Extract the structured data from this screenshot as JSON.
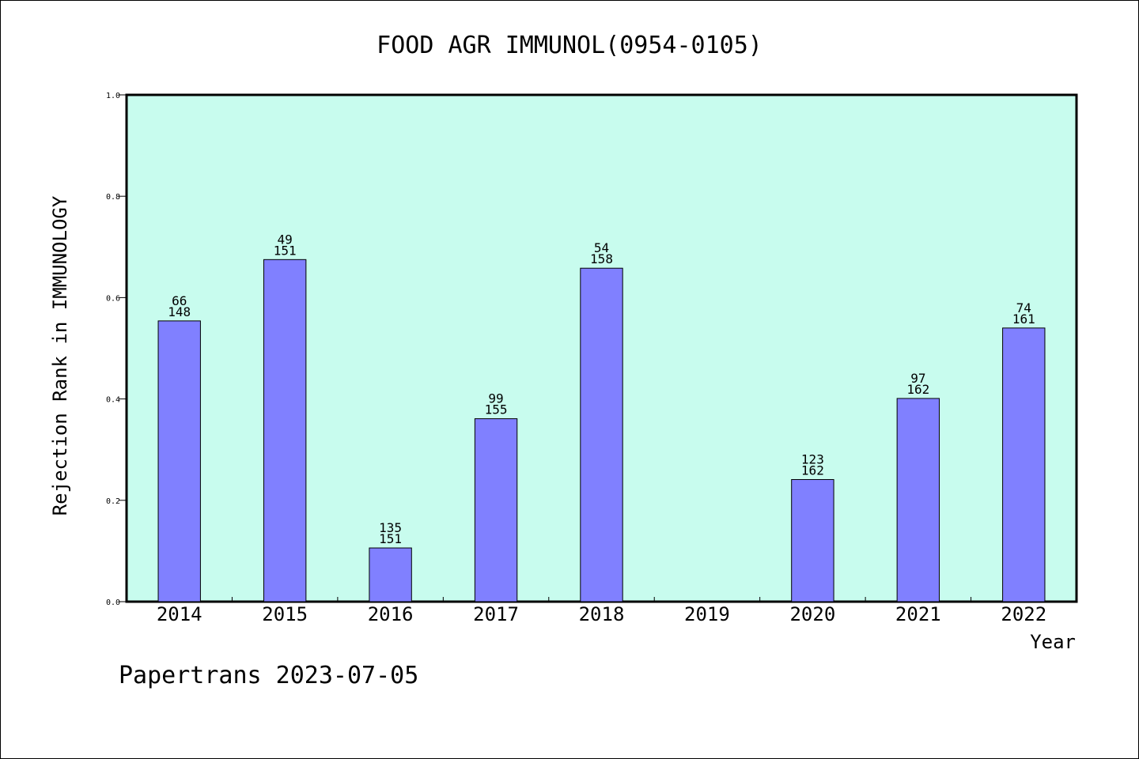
{
  "chart_data": {
    "type": "bar",
    "title": "FOOD AGR IMMUNOL(0954-0105)",
    "xlabel": "Year",
    "ylabel": "Rejection Rank in IMMUNOLOGY",
    "ylim": [
      0,
      1.0
    ],
    "yticks": [
      "0.0",
      "0.2",
      "0.4",
      "0.6",
      "0.8",
      "1.0"
    ],
    "grid": false,
    "categories": [
      "2014",
      "2015",
      "2016",
      "2017",
      "2018",
      "2019",
      "2020",
      "2021",
      "2022"
    ],
    "values": [
      0.554,
      0.675,
      0.106,
      0.361,
      0.658,
      null,
      0.241,
      0.401,
      0.54
    ],
    "label_rank": [
      "66",
      "49",
      "135",
      "99",
      "54",
      "",
      "123",
      "97",
      "74"
    ],
    "label_total": [
      "148",
      "151",
      "151",
      "155",
      "158",
      "",
      "162",
      "162",
      "161"
    ],
    "colors": {
      "plot_background": "#c8fcee",
      "bar_fill": "#8080ff",
      "bar_stroke": "#000000"
    }
  },
  "footer": {
    "text": "Papertrans 2023-07-05"
  }
}
